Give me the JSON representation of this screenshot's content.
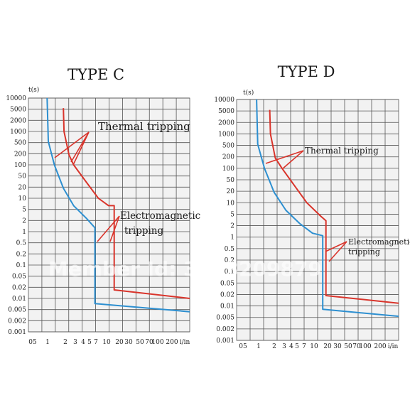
{
  "watermark": "Member Id: 3003209879",
  "chart_data": [
    {
      "type": "line",
      "title": "TYPE C",
      "ylabel": "t(s)",
      "xunit": "i/in",
      "yscale": "log",
      "xscale": "log",
      "ylim": [
        0.001,
        10000
      ],
      "xlim": [
        0.5,
        300
      ],
      "y_ticks": [
        "10000",
        "5000",
        "2000",
        "1000",
        "500",
        "200",
        "100",
        "50",
        "20",
        "10",
        "5",
        "2",
        "1",
        "0.5",
        "0.2",
        "0.1",
        "0.05",
        "0.02",
        "0.01",
        "0.005",
        "0.002",
        "0.001"
      ],
      "x_ticks": [
        "05",
        "1",
        "2",
        "3",
        "4",
        "5",
        "7",
        "10",
        "20",
        "30",
        "50",
        "70",
        "100",
        "200"
      ],
      "series": [
        {
          "color": "#d9342b",
          "points": [
            [
              2.0,
              5000
            ],
            [
              2.05,
              1000
            ],
            [
              2.5,
              200
            ],
            [
              3.0,
              100
            ],
            [
              5.0,
              30
            ],
            [
              8.0,
              10
            ],
            [
              12.0,
              6
            ],
            [
              15.0,
              6
            ],
            [
              15.0,
              0.018
            ],
            [
              300,
              0.01
            ]
          ]
        },
        {
          "color": "#2d8fd0",
          "points": [
            [
              1.05,
              10000
            ],
            [
              1.1,
              500
            ],
            [
              1.4,
              100
            ],
            [
              2.0,
              20
            ],
            [
              3.0,
              6
            ],
            [
              5.0,
              2.5
            ],
            [
              7.0,
              1.3
            ],
            [
              7.0,
              0.007
            ],
            [
              300,
              0.004
            ]
          ]
        }
      ],
      "annotations": [
        {
          "text": "Thermal tripping"
        },
        {
          "text": "Electromagnetic"
        },
        {
          "text": "tripping"
        }
      ]
    },
    {
      "type": "line",
      "title": "TYPE D",
      "ylabel": "t(s)",
      "xunit": "i/in",
      "yscale": "log",
      "xscale": "log",
      "ylim": [
        0.001,
        10000
      ],
      "xlim": [
        0.5,
        300
      ],
      "y_ticks": [
        "10000",
        "5000",
        "2000",
        "1000",
        "500",
        "200",
        "100",
        "50",
        "20",
        "10",
        "5",
        "2",
        "1",
        "0.5",
        "0.2",
        "0.1",
        "0.05",
        "0.02",
        "0.01",
        "0.005",
        "0.002",
        "0.001"
      ],
      "x_ticks": [
        "05",
        "1",
        "2",
        "3",
        "4",
        "5",
        "7",
        "10",
        "20",
        "30",
        "50",
        "70",
        "100",
        "200"
      ],
      "series": [
        {
          "color": "#d9342b",
          "points": [
            [
              1.85,
              5000
            ],
            [
              1.9,
              1000
            ],
            [
              2.3,
              200
            ],
            [
              3.0,
              100
            ],
            [
              5.0,
              30
            ],
            [
              8.0,
              10
            ],
            [
              14.0,
              4
            ],
            [
              17.0,
              3
            ],
            [
              17.0,
              0.02
            ],
            [
              300,
              0.012
            ]
          ]
        },
        {
          "color": "#2d8fd0",
          "points": [
            [
              1.1,
              10000
            ],
            [
              1.15,
              500
            ],
            [
              1.5,
              100
            ],
            [
              2.2,
              20
            ],
            [
              3.5,
              6
            ],
            [
              6.0,
              2.5
            ],
            [
              10.0,
              1.3
            ],
            [
              15.0,
              1.1
            ],
            [
              15.0,
              0.008
            ],
            [
              300,
              0.005
            ]
          ]
        }
      ],
      "annotations": [
        {
          "text": "Thermal tripping"
        },
        {
          "text": "Electromagnetic"
        },
        {
          "text": "tripping"
        }
      ]
    }
  ]
}
